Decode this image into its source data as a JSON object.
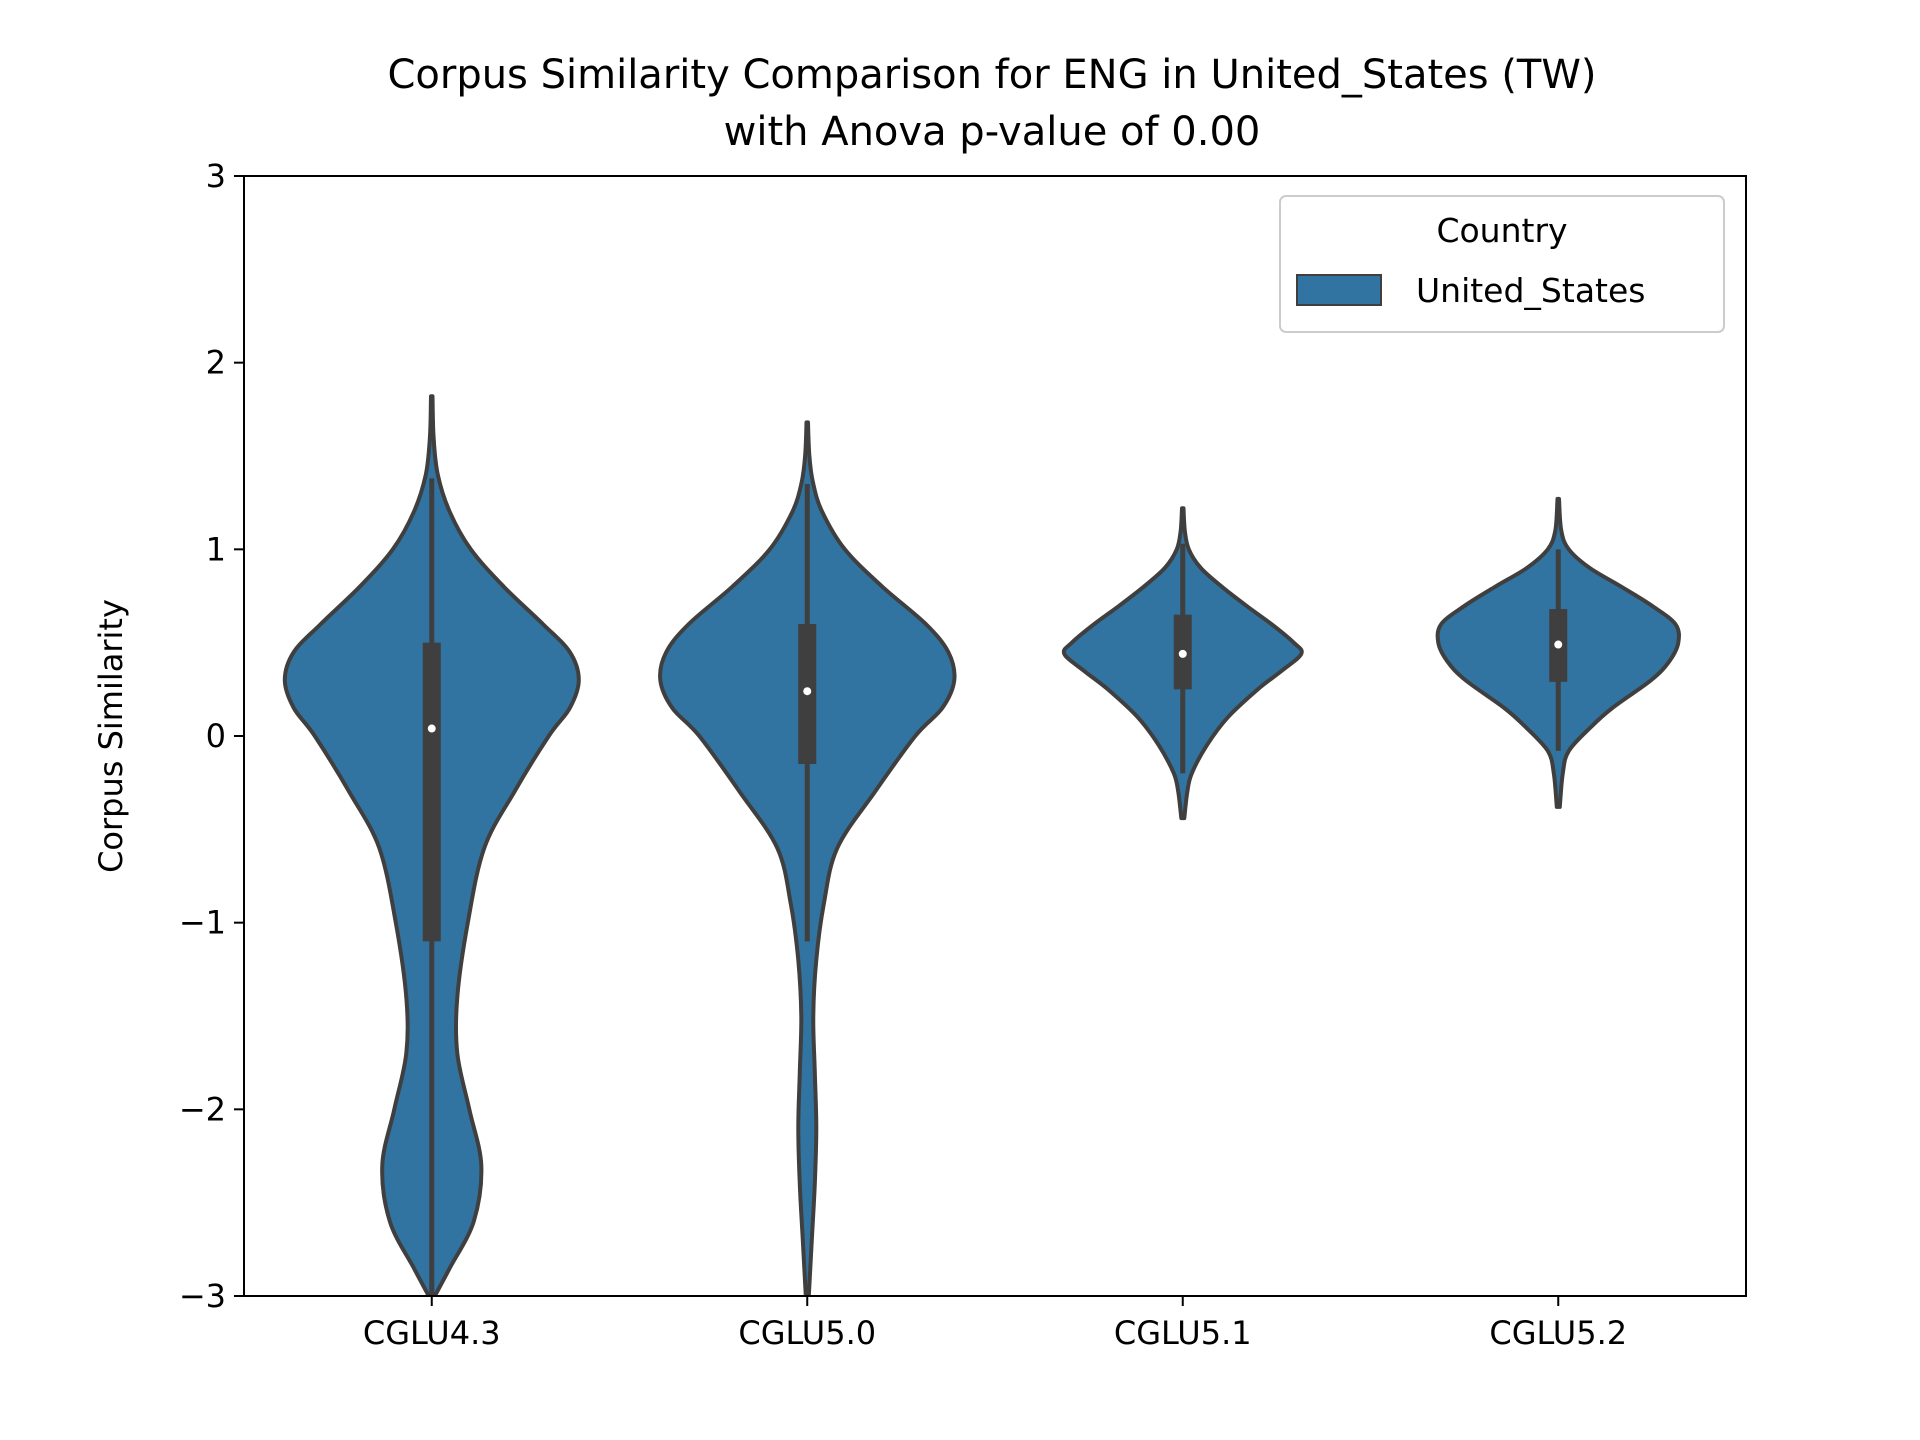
{
  "chart_data": {
    "type": "violin",
    "title_line1": "Corpus Similarity Comparison for ENG in United_States (TW)",
    "title_line2": "with Anova p-value of 0.00",
    "xlabel": "",
    "ylabel": "Corpus Similarity",
    "ylim": [
      -3,
      3
    ],
    "yticks": [
      -3,
      -2,
      -1,
      0,
      1,
      2,
      3
    ],
    "ytick_labels": [
      "−3",
      "−2",
      "−1",
      "0",
      "1",
      "2",
      "3"
    ],
    "categories": [
      "CGLU4.3",
      "CGLU5.0",
      "CGLU5.1",
      "CGLU5.2"
    ],
    "legend": {
      "title": "Country",
      "entries": [
        "United_States"
      ],
      "position": "top-right"
    },
    "grid": false,
    "colors": {
      "violin_fill": "#3274a1",
      "outline": "#3f3f3f",
      "box": "#3f3f3f",
      "median": "#ffffff"
    },
    "series": [
      {
        "category": "CGLU4.3",
        "min": -3.0,
        "max": 1.82,
        "q1": -1.1,
        "median": 0.04,
        "q3": 0.5,
        "whisker_low": -3.0,
        "whisker_high": 1.38,
        "density": [
          [
            -3.0,
            0.02
          ],
          [
            -2.85,
            0.12
          ],
          [
            -2.6,
            0.28
          ],
          [
            -2.3,
            0.33
          ],
          [
            -2.0,
            0.25
          ],
          [
            -1.7,
            0.17
          ],
          [
            -1.4,
            0.17
          ],
          [
            -1.0,
            0.24
          ],
          [
            -0.6,
            0.35
          ],
          [
            -0.3,
            0.55
          ],
          [
            0.0,
            0.78
          ],
          [
            0.15,
            0.92
          ],
          [
            0.3,
            0.98
          ],
          [
            0.45,
            0.92
          ],
          [
            0.6,
            0.74
          ],
          [
            0.8,
            0.48
          ],
          [
            1.0,
            0.26
          ],
          [
            1.2,
            0.12
          ],
          [
            1.4,
            0.04
          ],
          [
            1.6,
            0.012
          ],
          [
            1.82,
            0.005
          ]
        ]
      },
      {
        "category": "CGLU5.0",
        "min": -3.0,
        "max": 1.68,
        "q1": -0.15,
        "median": 0.24,
        "q3": 0.6,
        "whisker_low": -1.1,
        "whisker_high": 1.35,
        "density": [
          [
            -3.0,
            0.01
          ],
          [
            -2.7,
            0.03
          ],
          [
            -2.4,
            0.05
          ],
          [
            -2.1,
            0.06
          ],
          [
            -1.8,
            0.05
          ],
          [
            -1.5,
            0.04
          ],
          [
            -1.2,
            0.06
          ],
          [
            -0.9,
            0.11
          ],
          [
            -0.6,
            0.2
          ],
          [
            -0.3,
            0.45
          ],
          [
            0.0,
            0.72
          ],
          [
            0.15,
            0.9
          ],
          [
            0.3,
            0.98
          ],
          [
            0.45,
            0.94
          ],
          [
            0.6,
            0.79
          ],
          [
            0.8,
            0.5
          ],
          [
            1.0,
            0.25
          ],
          [
            1.2,
            0.1
          ],
          [
            1.35,
            0.04
          ],
          [
            1.5,
            0.014
          ],
          [
            1.68,
            0.005
          ]
        ]
      },
      {
        "category": "CGLU5.1",
        "min": -0.44,
        "max": 1.22,
        "q1": 0.25,
        "median": 0.44,
        "q3": 0.65,
        "whisker_low": -0.2,
        "whisker_high": 1.03,
        "density": [
          [
            -0.44,
            0.01
          ],
          [
            -0.3,
            0.03
          ],
          [
            -0.2,
            0.06
          ],
          [
            -0.05,
            0.16
          ],
          [
            0.1,
            0.3
          ],
          [
            0.25,
            0.5
          ],
          [
            0.35,
            0.66
          ],
          [
            0.44,
            0.79
          ],
          [
            0.5,
            0.74
          ],
          [
            0.6,
            0.59
          ],
          [
            0.7,
            0.42
          ],
          [
            0.8,
            0.26
          ],
          [
            0.9,
            0.12
          ],
          [
            1.0,
            0.04
          ],
          [
            1.1,
            0.014
          ],
          [
            1.22,
            0.005
          ]
        ]
      },
      {
        "category": "CGLU5.2",
        "min": -0.38,
        "max": 1.27,
        "q1": 0.29,
        "median": 0.49,
        "q3": 0.68,
        "whisker_low": -0.08,
        "whisker_high": 1.0,
        "density": [
          [
            -0.38,
            0.01
          ],
          [
            -0.2,
            0.03
          ],
          [
            -0.08,
            0.07
          ],
          [
            0.05,
            0.22
          ],
          [
            0.15,
            0.36
          ],
          [
            0.3,
            0.62
          ],
          [
            0.4,
            0.74
          ],
          [
            0.5,
            0.8
          ],
          [
            0.6,
            0.78
          ],
          [
            0.7,
            0.62
          ],
          [
            0.8,
            0.42
          ],
          [
            0.9,
            0.21
          ],
          [
            1.0,
            0.07
          ],
          [
            1.1,
            0.02
          ],
          [
            1.27,
            0.005
          ]
        ]
      }
    ]
  }
}
